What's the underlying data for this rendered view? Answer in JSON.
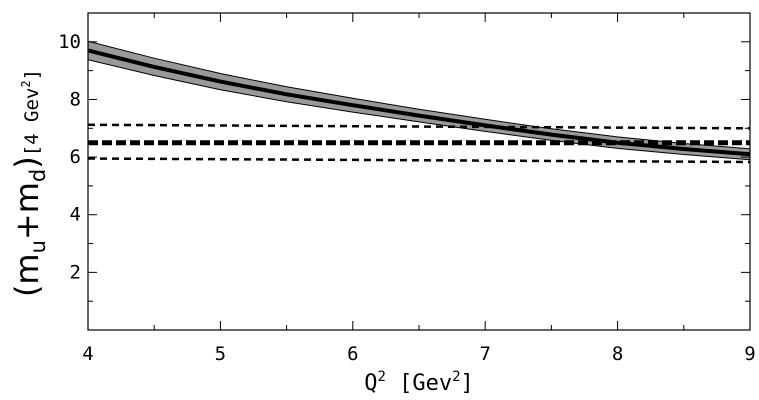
{
  "chart_data": {
    "type": "line",
    "title": "",
    "xlabel": {
      "text": "Q",
      "sup": "2",
      "unit_prefix": " [Gev",
      "unit_sup": "2",
      "unit_suffix": "]"
    },
    "ylabel": {
      "paren_open": "(",
      "m1": "m",
      "m1_sub": "u",
      "plus": "+",
      "m2": "m",
      "m2_sub": "d",
      "paren_close": ")",
      "unit_prefix": "[4 Gev",
      "unit_sup": "2",
      "unit_suffix": "]"
    },
    "xlim": [
      4,
      9
    ],
    "ylim": [
      0,
      11
    ],
    "x_ticks": [
      "4",
      "5",
      "6",
      "7",
      "8",
      "9"
    ],
    "y_ticks": [
      "2",
      "4",
      "6",
      "8",
      "10"
    ],
    "grid": false,
    "series": [
      {
        "style": "solid-thick",
        "x": [
          4.0,
          4.5,
          5.0,
          5.5,
          6.0,
          6.5,
          7.0,
          7.5,
          8.0,
          8.5,
          9.0
        ],
        "values": [
          9.7,
          9.13,
          8.62,
          8.18,
          7.8,
          7.44,
          7.1,
          6.78,
          6.5,
          6.28,
          6.1
        ]
      },
      {
        "style": "band",
        "x": [
          4.0,
          4.5,
          5.0,
          5.5,
          6.0,
          6.5,
          7.0,
          7.5,
          8.0,
          8.5,
          9.0
        ],
        "upper": [
          10.02,
          9.43,
          8.9,
          8.44,
          8.04,
          7.66,
          7.31,
          6.98,
          6.7,
          6.47,
          6.29
        ],
        "lower": [
          9.38,
          8.83,
          8.34,
          7.92,
          7.56,
          7.22,
          6.89,
          6.58,
          6.3,
          6.09,
          5.91
        ]
      },
      {
        "style": "dashed-thick",
        "x": [
          4.0,
          9.0
        ],
        "values": [
          6.5,
          6.5
        ]
      },
      {
        "style": "dashed",
        "x": [
          4.0,
          9.0
        ],
        "values": [
          7.12,
          7.0
        ]
      },
      {
        "style": "dashed",
        "x": [
          4.0,
          9.0
        ],
        "values": [
          5.95,
          5.83
        ]
      }
    ],
    "colors": {
      "band_fill": "#999999",
      "line": "#000000"
    }
  }
}
